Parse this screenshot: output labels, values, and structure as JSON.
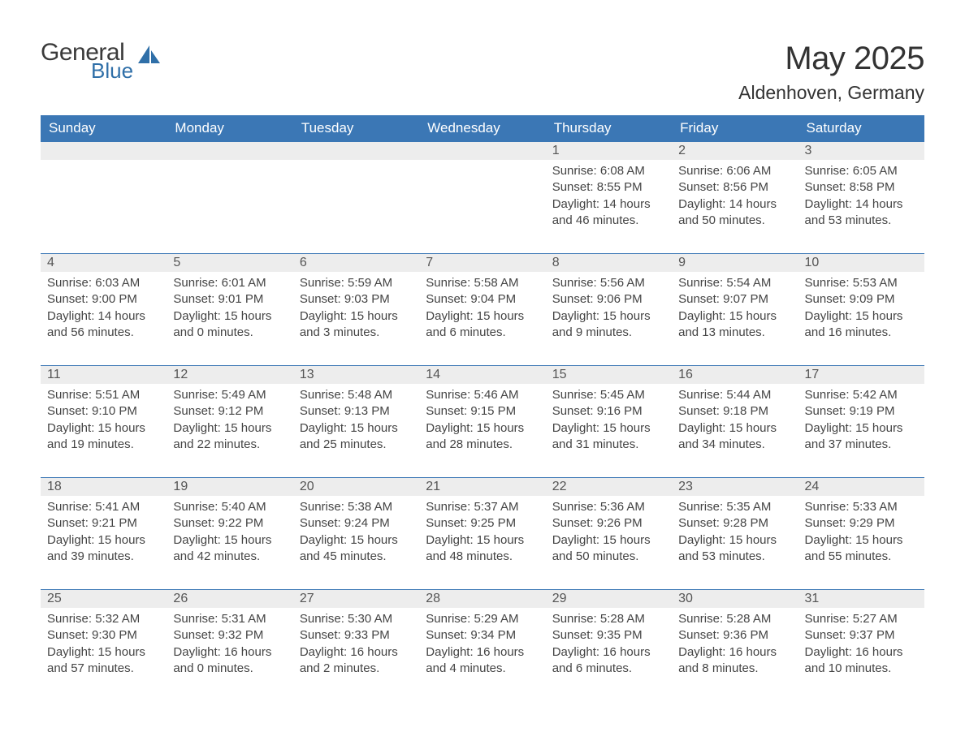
{
  "logo": {
    "general": "General",
    "blue": "Blue"
  },
  "title": "May 2025",
  "location": "Aldenhoven, Germany",
  "colors": {
    "header_bg": "#3b77b5",
    "header_text": "#ffffff",
    "daynum_bg": "#ededed",
    "day_border": "#3b77b5",
    "body_text": "#444444",
    "logo_blue": "#2f6fa8",
    "page_bg": "#ffffff"
  },
  "weekdays": [
    "Sunday",
    "Monday",
    "Tuesday",
    "Wednesday",
    "Thursday",
    "Friday",
    "Saturday"
  ],
  "weeks": [
    [
      null,
      null,
      null,
      null,
      {
        "n": "1",
        "sunrise": "6:08 AM",
        "sunset": "8:55 PM",
        "daylight": "14 hours and 46 minutes."
      },
      {
        "n": "2",
        "sunrise": "6:06 AM",
        "sunset": "8:56 PM",
        "daylight": "14 hours and 50 minutes."
      },
      {
        "n": "3",
        "sunrise": "6:05 AM",
        "sunset": "8:58 PM",
        "daylight": "14 hours and 53 minutes."
      }
    ],
    [
      {
        "n": "4",
        "sunrise": "6:03 AM",
        "sunset": "9:00 PM",
        "daylight": "14 hours and 56 minutes."
      },
      {
        "n": "5",
        "sunrise": "6:01 AM",
        "sunset": "9:01 PM",
        "daylight": "15 hours and 0 minutes."
      },
      {
        "n": "6",
        "sunrise": "5:59 AM",
        "sunset": "9:03 PM",
        "daylight": "15 hours and 3 minutes."
      },
      {
        "n": "7",
        "sunrise": "5:58 AM",
        "sunset": "9:04 PM",
        "daylight": "15 hours and 6 minutes."
      },
      {
        "n": "8",
        "sunrise": "5:56 AM",
        "sunset": "9:06 PM",
        "daylight": "15 hours and 9 minutes."
      },
      {
        "n": "9",
        "sunrise": "5:54 AM",
        "sunset": "9:07 PM",
        "daylight": "15 hours and 13 minutes."
      },
      {
        "n": "10",
        "sunrise": "5:53 AM",
        "sunset": "9:09 PM",
        "daylight": "15 hours and 16 minutes."
      }
    ],
    [
      {
        "n": "11",
        "sunrise": "5:51 AM",
        "sunset": "9:10 PM",
        "daylight": "15 hours and 19 minutes."
      },
      {
        "n": "12",
        "sunrise": "5:49 AM",
        "sunset": "9:12 PM",
        "daylight": "15 hours and 22 minutes."
      },
      {
        "n": "13",
        "sunrise": "5:48 AM",
        "sunset": "9:13 PM",
        "daylight": "15 hours and 25 minutes."
      },
      {
        "n": "14",
        "sunrise": "5:46 AM",
        "sunset": "9:15 PM",
        "daylight": "15 hours and 28 minutes."
      },
      {
        "n": "15",
        "sunrise": "5:45 AM",
        "sunset": "9:16 PM",
        "daylight": "15 hours and 31 minutes."
      },
      {
        "n": "16",
        "sunrise": "5:44 AM",
        "sunset": "9:18 PM",
        "daylight": "15 hours and 34 minutes."
      },
      {
        "n": "17",
        "sunrise": "5:42 AM",
        "sunset": "9:19 PM",
        "daylight": "15 hours and 37 minutes."
      }
    ],
    [
      {
        "n": "18",
        "sunrise": "5:41 AM",
        "sunset": "9:21 PM",
        "daylight": "15 hours and 39 minutes."
      },
      {
        "n": "19",
        "sunrise": "5:40 AM",
        "sunset": "9:22 PM",
        "daylight": "15 hours and 42 minutes."
      },
      {
        "n": "20",
        "sunrise": "5:38 AM",
        "sunset": "9:24 PM",
        "daylight": "15 hours and 45 minutes."
      },
      {
        "n": "21",
        "sunrise": "5:37 AM",
        "sunset": "9:25 PM",
        "daylight": "15 hours and 48 minutes."
      },
      {
        "n": "22",
        "sunrise": "5:36 AM",
        "sunset": "9:26 PM",
        "daylight": "15 hours and 50 minutes."
      },
      {
        "n": "23",
        "sunrise": "5:35 AM",
        "sunset": "9:28 PM",
        "daylight": "15 hours and 53 minutes."
      },
      {
        "n": "24",
        "sunrise": "5:33 AM",
        "sunset": "9:29 PM",
        "daylight": "15 hours and 55 minutes."
      }
    ],
    [
      {
        "n": "25",
        "sunrise": "5:32 AM",
        "sunset": "9:30 PM",
        "daylight": "15 hours and 57 minutes."
      },
      {
        "n": "26",
        "sunrise": "5:31 AM",
        "sunset": "9:32 PM",
        "daylight": "16 hours and 0 minutes."
      },
      {
        "n": "27",
        "sunrise": "5:30 AM",
        "sunset": "9:33 PM",
        "daylight": "16 hours and 2 minutes."
      },
      {
        "n": "28",
        "sunrise": "5:29 AM",
        "sunset": "9:34 PM",
        "daylight": "16 hours and 4 minutes."
      },
      {
        "n": "29",
        "sunrise": "5:28 AM",
        "sunset": "9:35 PM",
        "daylight": "16 hours and 6 minutes."
      },
      {
        "n": "30",
        "sunrise": "5:28 AM",
        "sunset": "9:36 PM",
        "daylight": "16 hours and 8 minutes."
      },
      {
        "n": "31",
        "sunrise": "5:27 AM",
        "sunset": "9:37 PM",
        "daylight": "16 hours and 10 minutes."
      }
    ]
  ],
  "labels": {
    "sunrise": "Sunrise: ",
    "sunset": "Sunset: ",
    "daylight": "Daylight: "
  }
}
